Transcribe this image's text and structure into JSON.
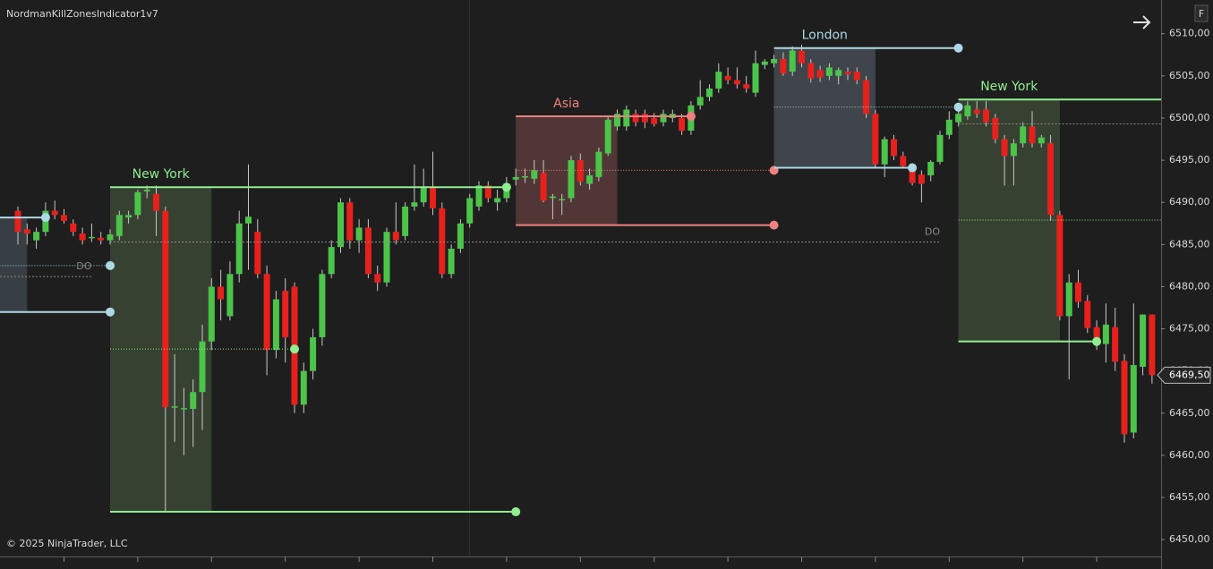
{
  "chart_data": {
    "type": "candlestick",
    "title": "NordmanKillZonesIndicator1v7",
    "copyright": "© 2025 NinjaTrader, LLC",
    "button": "F",
    "up_color": "#4cc44a",
    "down_color": "#e8201c",
    "wick_color": "#c8c8c8",
    "ylim": [
      6448,
      6514
    ],
    "yticks": [
      {
        "value": 6450,
        "label": "6450,00"
      },
      {
        "value": 6455,
        "label": "6455,00"
      },
      {
        "value": 6460,
        "label": "6460,00"
      },
      {
        "value": 6465,
        "label": "6465,00"
      },
      {
        "value": 6470,
        "label": "6470,00"
      },
      {
        "value": 6475,
        "label": "6475,00"
      },
      {
        "value": 6480,
        "label": "6480,00"
      },
      {
        "value": 6485,
        "label": "6485,00"
      },
      {
        "value": 6490,
        "label": "6490,00"
      },
      {
        "value": 6495,
        "label": "6495,00"
      },
      {
        "value": 6500,
        "label": "6500,00"
      },
      {
        "value": 6505,
        "label": "6505,00"
      },
      {
        "value": 6510,
        "label": "6510,00"
      }
    ],
    "last_price": {
      "value": 6469.5,
      "label": "6469,50"
    },
    "open": [
      6489,
      6486.8,
      6485.5,
      6486.5,
      6489,
      6488.5,
      6487.5,
      6486.3,
      6485.8,
      6485.8,
      6485.5,
      6486,
      6488.2,
      6488.5,
      6491.3,
      6491,
      6489,
      6465.7,
      6465.5,
      6465.5,
      6467.5,
      6473.5,
      6480,
      6476.5,
      6481.5,
      6487.5,
      6486.5,
      6481.5,
      6472.5,
      6479.5,
      6480,
      6466,
      6470,
      6474,
      6481.5,
      6484.7,
      6490,
      6485.5,
      6487,
      6481.5,
      6480.5,
      6486.5,
      6486,
      6489.5,
      6490,
      6491.8,
      6489.3,
      6481.5,
      6484.5,
      6487.5,
      6489.5,
      6492,
      6490,
      6490.5,
      6492.7,
      6493,
      6492.8,
      6493.5,
      6490.5,
      6490.3,
      6490.5,
      6495,
      6492.2,
      6493,
      6495.8,
      6499,
      6499,
      6500.5,
      6500.5,
      6500,
      6499.5,
      6500,
      6500,
      6498.5,
      6501.5,
      6502.5,
      6503.5,
      6505,
      6504.5,
      6504,
      6503,
      6506.3,
      6506.5,
      6507,
      6505.5,
      6508,
      6506.5,
      6505.7,
      6505,
      6505,
      6505.5,
      6505.5,
      6504.5,
      6500.5,
      6494.5,
      6497.5,
      6495.5,
      6494,
      6493.3,
      6493.2,
      6494.8,
      6498,
      6499.5,
      6500.2,
      6501,
      6501,
      6500,
      6497.5,
      6495.5,
      6497,
      6499,
      6497,
      6497,
      6488.5,
      6476.5,
      6480.5,
      6478.3,
      6475.2,
      6473.2,
      6475.2,
      6471.2,
      6462.7,
      6470.5,
      6476.7
    ],
    "high": [
      6489.5,
      6487.5,
      6487,
      6490,
      6490.2,
      6489.2,
      6488,
      6487,
      6487.5,
      6486.5,
      6486.8,
      6489,
      6489,
      6491.5,
      6492,
      6492,
      6489.5,
      6472,
      6468,
      6469,
      6475.5,
      6481,
      6482,
      6483,
      6489,
      6494.5,
      6488,
      6482.5,
      6479.5,
      6481,
      6480.5,
      6471,
      6475,
      6482,
      6485.5,
      6490.5,
      6490.5,
      6488,
      6488,
      6482.5,
      6487,
      6490,
      6490,
      6494.5,
      6494,
      6496,
      6490,
      6485,
      6488,
      6491,
      6492.5,
      6492.5,
      6491.5,
      6493,
      6494,
      6494,
      6495,
      6495,
      6491,
      6491,
      6495.5,
      6495.8,
      6494,
      6496.5,
      6500.2,
      6501,
      6501.5,
      6501,
      6501,
      6500.6,
      6501,
      6501,
      6500.5,
      6502,
      6504.5,
      6504,
      6506.5,
      6506,
      6506,
      6505,
      6508,
      6507,
      6507.5,
      6507.8,
      6508.5,
      6508.7,
      6507,
      6506.2,
      6506.5,
      6506,
      6506,
      6506,
      6505,
      6501,
      6497.8,
      6498,
      6496,
      6494.5,
      6493.8,
      6495,
      6498.5,
      6500.8,
      6501,
      6502,
      6502,
      6502,
      6500.5,
      6498,
      6497.5,
      6499.5,
      6500.8,
      6498,
      6498,
      6489,
      6481.5,
      6482,
      6479,
      6476,
      6478,
      6477.5,
      6472,
      6478,
      6476.7,
      6476.7
    ],
    "low": [
      6485,
      6485,
      6484.5,
      6486,
      6488,
      6487.5,
      6486,
      6485,
      6485.3,
      6485,
      6485,
      6485.5,
      6487.5,
      6488,
      6490.5,
      6486,
      6453.3,
      6461.6,
      6460,
      6461,
      6463,
      6472.5,
      6476,
      6476,
      6480.5,
      6482,
      6481,
      6469.5,
      6471.5,
      6471,
      6465,
      6465,
      6469,
      6473,
      6481,
      6484,
      6484.5,
      6484,
      6481,
      6479.5,
      6480,
      6485,
      6485.5,
      6489,
      6489.5,
      6488.5,
      6481,
      6481,
      6484,
      6487,
      6489,
      6490,
      6489,
      6490,
      6492,
      6492.3,
      6492.2,
      6490,
      6488,
      6488.5,
      6490,
      6492,
      6491.5,
      6492.5,
      6495.5,
      6498.5,
      6498.5,
      6499,
      6498.8,
      6499,
      6499,
      6499.5,
      6498,
      6498,
      6501,
      6502,
      6503,
      6504,
      6503.5,
      6503,
      6502.5,
      6505.8,
      6506,
      6505,
      6505,
      6506,
      6504.2,
      6504.3,
      6504.5,
      6504,
      6504.5,
      6504,
      6500,
      6494,
      6493,
      6495,
      6494,
      6492,
      6490,
      6492.5,
      6494.5,
      6497.5,
      6499,
      6499.8,
      6500,
      6499,
      6497,
      6492,
      6492,
      6496.5,
      6496.5,
      6496.5,
      6487.8,
      6476,
      6469,
      6477.5,
      6474.5,
      6472.5,
      6471,
      6470,
      6461.5,
      6462,
      6469.5,
      6468.5
    ],
    "close": [
      6486.5,
      6486.3,
      6486.5,
      6489,
      6488.5,
      6487.8,
      6486.5,
      6485.5,
      6485.9,
      6485.5,
      6486.2,
      6488.5,
      6488.5,
      6491.2,
      6491.5,
      6489,
      6465.7,
      6465.8,
      6465.6,
      6467.5,
      6473.5,
      6480,
      6478.5,
      6481.5,
      6487.5,
      6488.3,
      6481.5,
      6472.5,
      6478.5,
      6474,
      6466,
      6470,
      6474,
      6481.5,
      6484.7,
      6490,
      6485.5,
      6487,
      6481.5,
      6480.5,
      6486.5,
      6485.5,
      6489.5,
      6490,
      6491.8,
      6489.3,
      6481.5,
      6484.5,
      6487.5,
      6490.5,
      6492,
      6490.5,
      6490.5,
      6492,
      6493,
      6493.1,
      6493.8,
      6490.2,
      6490.7,
      6490.4,
      6495,
      6492.5,
      6493.2,
      6496,
      6499.8,
      6500.5,
      6501,
      6499.5,
      6499.5,
      6499.3,
      6500.5,
      6500.5,
      6498.5,
      6501.5,
      6502.5,
      6503.5,
      6505.5,
      6504.5,
      6504,
      6503.5,
      6506.5,
      6506.7,
      6507,
      6505.3,
      6508,
      6506.5,
      6504.7,
      6504.8,
      6506,
      6505.7,
      6505.2,
      6504.5,
      6500.5,
      6494.5,
      6497.5,
      6495.5,
      6494.3,
      6492.3,
      6492.2,
      6494.8,
      6498,
      6499.8,
      6500.5,
      6501.5,
      6500.5,
      6499.5,
      6497.5,
      6495.5,
      6497,
      6499,
      6497,
      6497.7,
      6488.5,
      6476.5,
      6480.5,
      6478.2,
      6475.1,
      6473.2,
      6475.5,
      6471.1,
      6462.5,
      6470.7,
      6476.7,
      6469.5
    ],
    "sessions": [
      {
        "color": "#add8e6",
        "fill": "#3a4148",
        "high": 6488.2,
        "low": 6477,
        "mid": 6482.5,
        "box": [
          -2,
          1
        ],
        "high_end": 3,
        "low_end": 10,
        "mid_end": 10
      },
      {
        "name": "New York",
        "color": "#90ee90",
        "fill": "#384534",
        "high": 6491.8,
        "low": 6453.3,
        "mid": 6472.6,
        "box": [
          10,
          21
        ],
        "high_end": 53,
        "low_end": 54,
        "mid_end": 30
      },
      {
        "name": "Asia",
        "color": "#f08080",
        "fill": "#553a37",
        "high": 6500.2,
        "low": 6487.3,
        "mid": 6493.8,
        "box": [
          54,
          65
        ],
        "high_end": 73,
        "low_end": 82,
        "mid_end": 82
      },
      {
        "name": "London",
        "color": "#add8e6",
        "fill": "#42494f",
        "high": 6508.3,
        "low": 6494.1,
        "mid": 6501.3,
        "box": [
          82,
          93
        ],
        "high_end": 102,
        "low_end": 97,
        "mid_end": 102
      },
      {
        "name": "New York",
        "color": "#90ee90",
        "fill": "#384534",
        "high": 6502.2,
        "low": 6473.5,
        "mid": 6487.9,
        "box": [
          102,
          113
        ],
        "high_end": 124,
        "low_end": 117,
        "mid_end": 124
      }
    ],
    "levels": [
      {
        "label": "DO",
        "value": 6481.2,
        "from": -2,
        "to": 8
      },
      {
        "label": "DO",
        "value": 6485.3,
        "from": 10,
        "to": 100
      },
      {
        "value": 6499.3,
        "from": 102,
        "to": 124
      }
    ]
  }
}
